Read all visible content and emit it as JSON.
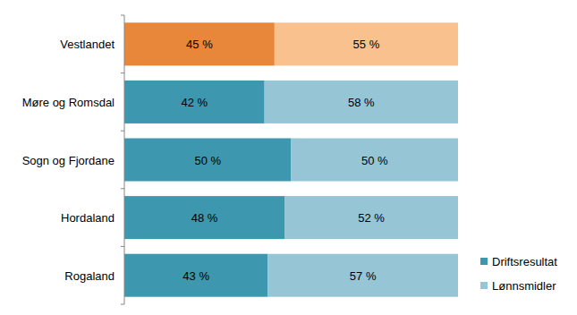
{
  "chart_data": {
    "type": "bar",
    "orientation": "horizontal",
    "stacked": true,
    "data_labels": true,
    "tick_labels": "y",
    "legend": "right",
    "categories": [
      "Vestlandet",
      "Møre og Romsdal",
      "Sogn og Fjordane",
      "Hordaland",
      "Rogaland"
    ],
    "xlim": [
      0,
      100
    ],
    "series": [
      {
        "name": "Driftsresultat",
        "color": "#3d97ae",
        "colors": [
          "#e8873a",
          "#3d97ae",
          "#3d97ae",
          "#3d97ae",
          "#3d97ae"
        ],
        "values": [
          45,
          42,
          50,
          48,
          43
        ],
        "value_labels": [
          "45 %",
          "42 %",
          "50 %",
          "48 %",
          "43 %"
        ]
      },
      {
        "name": "Lønnsmidler",
        "color": "#96c5d6",
        "colors": [
          "#f9c18e",
          "#96c5d6",
          "#96c5d6",
          "#96c5d6",
          "#96c5d6"
        ],
        "values": [
          55,
          58,
          50,
          52,
          57
        ],
        "value_labels": [
          "55 %",
          "58 %",
          "50 %",
          "52 %",
          "57 %"
        ]
      }
    ]
  }
}
